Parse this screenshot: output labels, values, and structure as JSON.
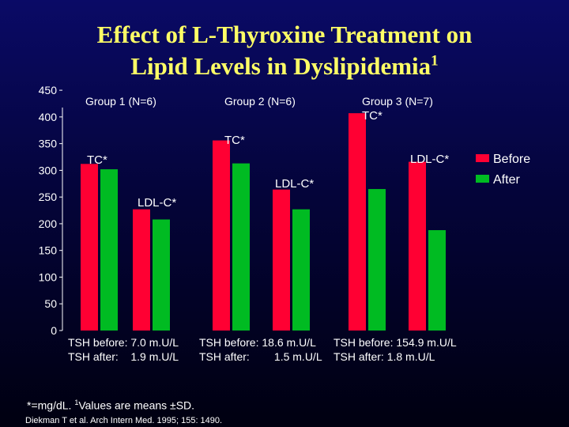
{
  "title": {
    "line1": "Effect of L-Thyroxine Treatment on",
    "line2": "Lipid Levels in Dyslipidemia",
    "sup": "1"
  },
  "chart_data": {
    "type": "bar",
    "categories": [
      "TC*",
      "LDL-C*",
      "TC*",
      "LDL-C*",
      "TC*",
      "LDL-C*"
    ],
    "groups": [
      "Group 1 (N=6)",
      "Group 2 (N=6)",
      "Group 3 (N=7)"
    ],
    "series": [
      {
        "name": "Before",
        "color": "#ff0033",
        "values": [
          312,
          227,
          356,
          264,
          407,
          316
        ]
      },
      {
        "name": "After",
        "color": "#00bb22",
        "values": [
          302,
          208,
          313,
          227,
          265,
          188
        ]
      }
    ],
    "yticks": [
      "0",
      "50",
      "100",
      "150",
      "200",
      "250",
      "300",
      "350",
      "400",
      "450"
    ],
    "ylim": [
      0,
      450
    ],
    "legend": "right"
  },
  "tsh": {
    "before_prefix": "TSH before:",
    "after_prefix": "TSH after:",
    "groups": [
      {
        "before": "7.0 m.U/L",
        "after": "1.9 m.U/L"
      },
      {
        "before": "18.6 m.U/L",
        "after": "1.5 m.U/L"
      },
      {
        "before": "154.9 m.U/L",
        "after": "1.8 m.U/L"
      }
    ]
  },
  "footnote": {
    "text1": "*=mg/dL.",
    "sup": "1",
    "text2": "Values are means ±SD."
  },
  "citation": "Diekman T et al. Arch Intern Med. 1995; 155: 1490."
}
